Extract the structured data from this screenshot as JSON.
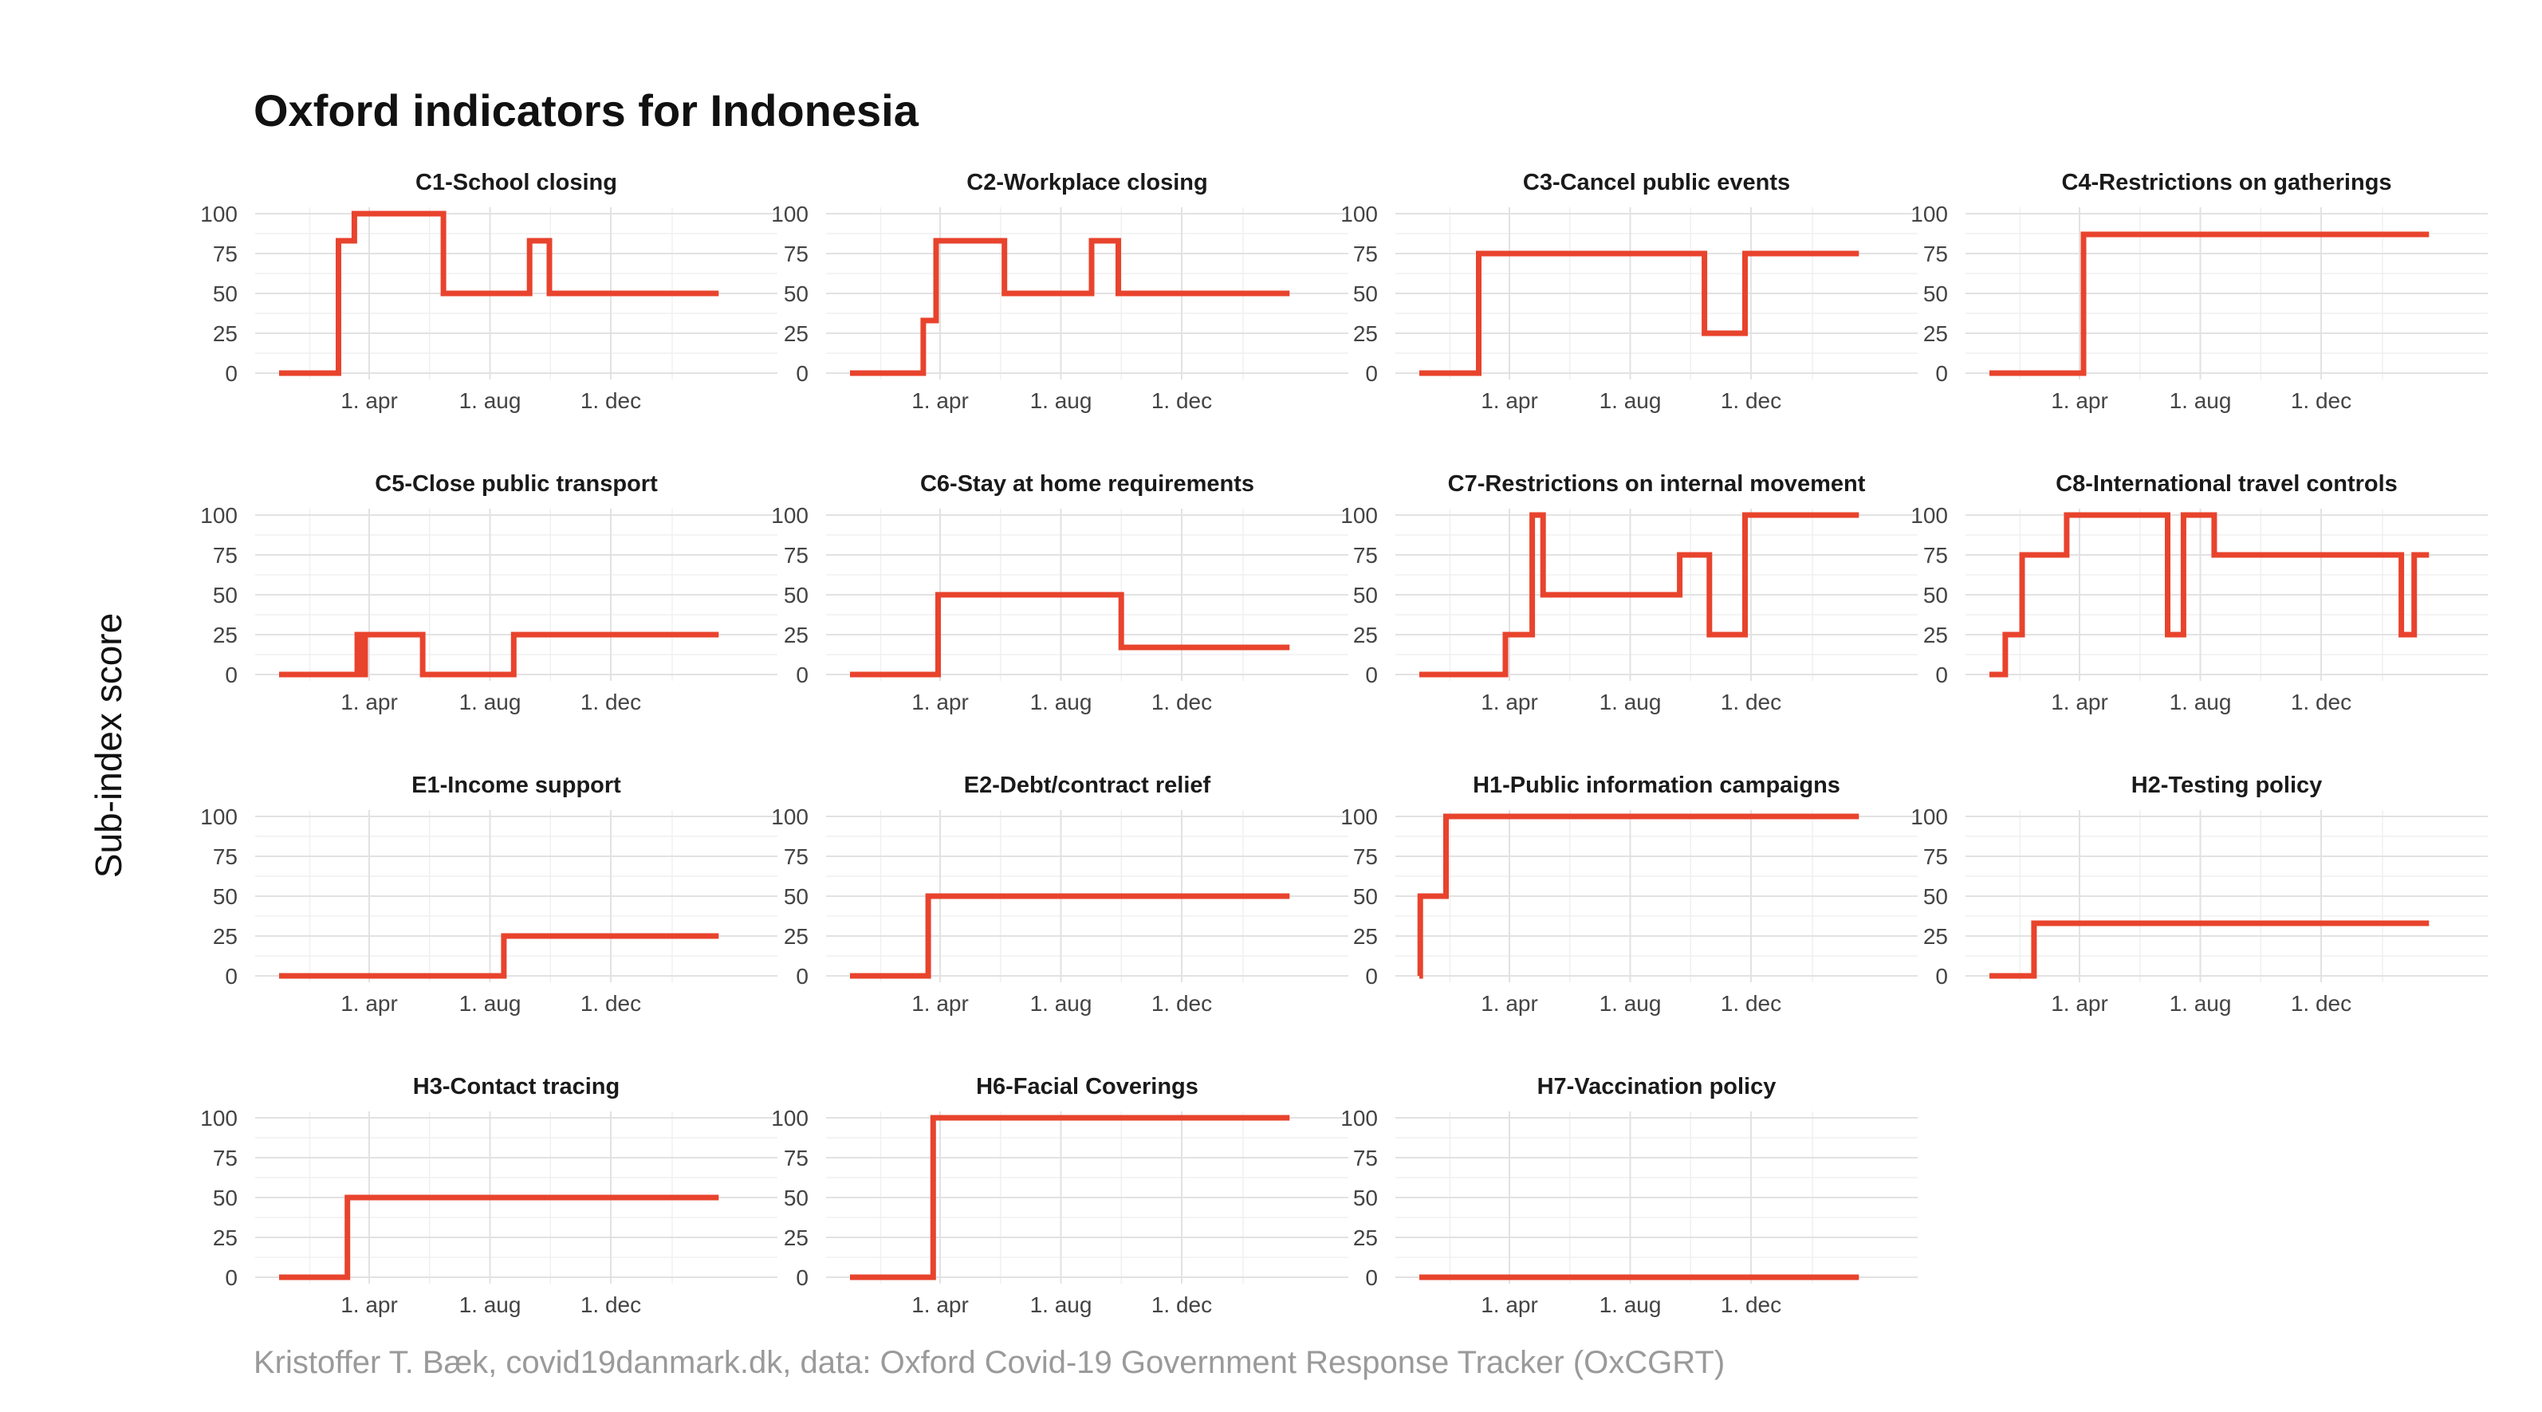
{
  "chart_data": {
    "type": "line",
    "title": "Oxford indicators for Indonesia",
    "ylabel": "Sub-index score",
    "caption": "Kristoffer T. Bæk, covid19danmark.dk, data: Oxford Covid-19 Government Response Tracker (OxCGRT)",
    "color": "#E8432D",
    "grid": true,
    "ylim": [
      0,
      100
    ],
    "yticks": [
      0,
      25,
      50,
      75,
      100
    ],
    "x_range": [
      "2020-01-01",
      "2021-03-31"
    ],
    "xticks": [
      {
        "date": "2020-04-01",
        "label": "1. apr"
      },
      {
        "date": "2020-08-01",
        "label": "1. aug"
      },
      {
        "date": "2020-12-01",
        "label": "1. dec"
      }
    ],
    "panels": [
      {
        "name": "C1-School closing",
        "steps": [
          [
            "2020-01-01",
            0
          ],
          [
            "2020-03-01",
            83
          ],
          [
            "2020-03-17",
            100
          ],
          [
            "2020-06-15",
            50
          ],
          [
            "2020-09-10",
            83
          ],
          [
            "2020-09-30",
            50
          ],
          [
            "2021-03-20",
            50
          ]
        ]
      },
      {
        "name": "C2-Workplace closing",
        "steps": [
          [
            "2020-01-01",
            0
          ],
          [
            "2020-03-15",
            33
          ],
          [
            "2020-03-28",
            83
          ],
          [
            "2020-06-05",
            50
          ],
          [
            "2020-09-01",
            83
          ],
          [
            "2020-09-28",
            50
          ],
          [
            "2021-03-20",
            50
          ]
        ]
      },
      {
        "name": "C3-Cancel public events",
        "steps": [
          [
            "2020-01-01",
            0
          ],
          [
            "2020-03-01",
            75
          ],
          [
            "2020-10-15",
            25
          ],
          [
            "2020-11-25",
            75
          ],
          [
            "2021-03-20",
            75
          ]
        ]
      },
      {
        "name": "C4-Restrictions on gatherings",
        "steps": [
          [
            "2020-01-01",
            0
          ],
          [
            "2020-04-05",
            87
          ],
          [
            "2021-03-20",
            87
          ]
        ]
      },
      {
        "name": "C5-Close public transport",
        "steps": [
          [
            "2020-01-01",
            0
          ],
          [
            "2020-03-20",
            25
          ],
          [
            "2020-03-24",
            0
          ],
          [
            "2020-03-28",
            25
          ],
          [
            "2020-05-25",
            0
          ],
          [
            "2020-08-25",
            25
          ],
          [
            "2021-03-20",
            25
          ]
        ]
      },
      {
        "name": "C6-Stay at home requirements",
        "steps": [
          [
            "2020-01-01",
            0
          ],
          [
            "2020-03-30",
            50
          ],
          [
            "2020-10-01",
            17
          ],
          [
            "2021-03-20",
            17
          ]
        ]
      },
      {
        "name": "C7-Restrictions on internal movement",
        "steps": [
          [
            "2020-01-01",
            0
          ],
          [
            "2020-03-28",
            25
          ],
          [
            "2020-04-24",
            100
          ],
          [
            "2020-05-05",
            50
          ],
          [
            "2020-09-20",
            75
          ],
          [
            "2020-10-20",
            25
          ],
          [
            "2020-11-25",
            100
          ],
          [
            "2021-03-20",
            100
          ]
        ]
      },
      {
        "name": "C8-International travel controls",
        "steps": [
          [
            "2020-01-01",
            0
          ],
          [
            "2020-01-17",
            25
          ],
          [
            "2020-02-03",
            75
          ],
          [
            "2020-03-19",
            100
          ],
          [
            "2020-06-29",
            25
          ],
          [
            "2020-07-15",
            100
          ],
          [
            "2020-08-15",
            75
          ],
          [
            "2021-02-20",
            25
          ],
          [
            "2021-03-05",
            75
          ],
          [
            "2021-03-20",
            75
          ]
        ]
      },
      {
        "name": "E1-Income support",
        "steps": [
          [
            "2020-01-01",
            0
          ],
          [
            "2020-08-15",
            25
          ],
          [
            "2021-03-20",
            25
          ]
        ]
      },
      {
        "name": "E2-Debt/contract relief",
        "steps": [
          [
            "2020-01-01",
            0
          ],
          [
            "2020-03-20",
            50
          ],
          [
            "2021-03-20",
            50
          ]
        ]
      },
      {
        "name": "H1-Public information campaigns",
        "steps": [
          [
            "2020-01-01",
            0
          ],
          [
            "2020-01-02",
            50
          ],
          [
            "2020-01-28",
            100
          ],
          [
            "2021-03-20",
            100
          ]
        ]
      },
      {
        "name": "H2-Testing policy",
        "steps": [
          [
            "2020-01-01",
            0
          ],
          [
            "2020-02-15",
            33
          ],
          [
            "2021-03-20",
            33
          ]
        ]
      },
      {
        "name": "H3-Contact tracing",
        "steps": [
          [
            "2020-01-01",
            0
          ],
          [
            "2020-03-10",
            50
          ],
          [
            "2021-03-20",
            50
          ]
        ]
      },
      {
        "name": "H6-Facial Coverings",
        "steps": [
          [
            "2020-01-01",
            0
          ],
          [
            "2020-03-25",
            100
          ],
          [
            "2021-03-20",
            100
          ]
        ]
      },
      {
        "name": "H7-Vaccination policy",
        "steps": [
          [
            "2020-01-01",
            0
          ],
          [
            "2021-03-20",
            0
          ]
        ]
      }
    ]
  }
}
